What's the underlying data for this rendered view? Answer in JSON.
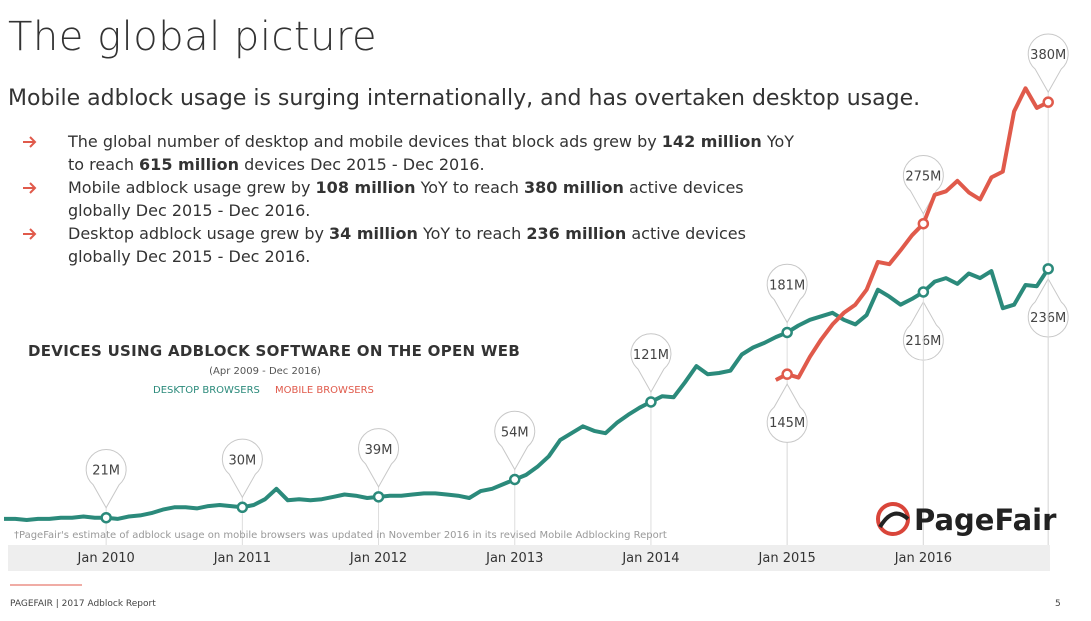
{
  "slide": {
    "title": "The global picture",
    "subtitle": "Mobile adblock usage is surging internationally, and has overtaken desktop usage.",
    "bullets": [
      [
        "The global number of desktop and mobile devices that block ads grew by ",
        "142 million",
        " YoY to reach ",
        "615 million",
        " devices Dec 2015 - Dec 2016."
      ],
      [
        "Mobile adblock usage grew by ",
        "108 million",
        " YoY to reach ",
        "380 million",
        " active devices globally Dec 2015 - Dec 2016."
      ],
      [
        "Desktop adblock usage grew by ",
        "34 million",
        " YoY to reach ",
        "236 million",
        " active devices globally Dec 2015 - Dec 2016."
      ]
    ],
    "footer": "PAGEFAIR | 2017 Adblock Report",
    "page_number": "5",
    "logo": "PageFair"
  },
  "chart_data": {
    "type": "line",
    "title": "DEVICES USING ADBLOCK SOFTWARE ON THE OPEN WEB",
    "subtitle": "(Apr 2009 - Dec 2016)",
    "footnote": "†PageFair's estimate of adblock usage on mobile browsers was updated in November 2016 in its revised Mobile Adblocking Report",
    "categories": [
      null,
      null,
      null,
      null,
      null,
      null,
      null,
      null,
      null,
      "Jan 2010",
      null,
      null,
      null,
      null,
      null,
      null,
      null,
      null,
      null,
      null,
      null,
      "Jan 2011",
      null,
      null,
      null,
      null,
      null,
      null,
      null,
      null,
      null,
      null,
      null,
      "Jan 2012",
      null,
      null,
      null,
      null,
      null,
      null,
      null,
      null,
      null,
      null,
      null,
      "Jan 2013",
      null,
      null,
      null,
      null,
      null,
      null,
      null,
      null,
      null,
      null,
      null,
      "Jan 2014",
      null,
      null,
      null,
      null,
      null,
      null,
      null,
      null,
      null,
      null,
      null,
      "Jan 2015",
      null,
      null,
      null,
      null,
      null,
      null,
      null,
      null,
      null,
      null,
      null,
      "Jan 2016",
      null,
      null,
      null,
      null,
      null,
      null,
      null,
      null,
      null,
      null,
      null
    ],
    "ylim": [
      0,
      400
    ],
    "series": [
      {
        "name": "DESKTOP BROWSERS",
        "color": "#2b8a7b",
        "values": [
          20,
          20,
          19,
          20,
          20,
          21,
          21,
          22,
          21,
          21,
          20,
          22,
          23,
          25,
          28,
          30,
          30,
          29,
          31,
          32,
          31,
          30,
          32,
          37,
          46,
          36,
          37,
          36,
          37,
          39,
          41,
          40,
          38,
          39,
          40,
          40,
          41,
          42,
          42,
          41,
          40,
          38,
          44,
          46,
          50,
          54,
          58,
          65,
          74,
          88,
          94,
          100,
          96,
          94,
          103,
          110,
          116,
          121,
          126,
          125,
          138,
          152,
          145,
          146,
          148,
          162,
          168,
          172,
          177,
          181,
          187,
          192,
          195,
          198,
          192,
          188,
          196,
          218,
          212,
          205,
          210,
          216,
          225,
          228,
          223,
          232,
          228,
          234,
          202,
          205,
          222,
          221,
          236
        ],
        "value_labels": [
          null,
          null,
          null,
          null,
          null,
          null,
          null,
          null,
          null,
          "21M",
          null,
          null,
          null,
          null,
          null,
          null,
          null,
          null,
          null,
          null,
          null,
          "30M",
          null,
          null,
          null,
          null,
          null,
          null,
          null,
          null,
          null,
          null,
          null,
          "39M",
          null,
          null,
          null,
          null,
          null,
          null,
          null,
          null,
          null,
          null,
          null,
          "54M",
          null,
          null,
          null,
          null,
          null,
          null,
          null,
          null,
          null,
          null,
          null,
          "121M",
          null,
          null,
          null,
          null,
          null,
          null,
          null,
          null,
          null,
          null,
          null,
          "181M",
          null,
          null,
          null,
          null,
          null,
          null,
          null,
          null,
          null,
          null,
          null,
          "216M",
          null,
          null,
          null,
          null,
          null,
          null,
          null,
          null,
          null,
          null,
          "236M"
        ]
      },
      {
        "name": "MOBILE BROWSERS",
        "color": "#e05a4b",
        "values": [
          null,
          null,
          null,
          null,
          null,
          null,
          null,
          null,
          null,
          null,
          null,
          null,
          null,
          null,
          null,
          null,
          null,
          null,
          null,
          null,
          null,
          null,
          null,
          null,
          null,
          null,
          null,
          null,
          null,
          null,
          null,
          null,
          null,
          null,
          null,
          null,
          null,
          null,
          null,
          null,
          null,
          null,
          null,
          null,
          null,
          null,
          null,
          null,
          null,
          null,
          null,
          null,
          null,
          null,
          null,
          null,
          null,
          null,
          null,
          null,
          null,
          null,
          null,
          null,
          null,
          null,
          null,
          null,
          140,
          145,
          142,
          160,
          175,
          188,
          198,
          205,
          218,
          242,
          240,
          252,
          265,
          275,
          300,
          303,
          312,
          302,
          296,
          315,
          320,
          372,
          392,
          375,
          380
        ],
        "value_labels": [
          null,
          null,
          null,
          null,
          null,
          null,
          null,
          null,
          null,
          null,
          null,
          null,
          null,
          null,
          null,
          null,
          null,
          null,
          null,
          null,
          null,
          null,
          null,
          null,
          null,
          null,
          null,
          null,
          null,
          null,
          null,
          null,
          null,
          null,
          null,
          null,
          null,
          null,
          null,
          null,
          null,
          null,
          null,
          null,
          null,
          null,
          null,
          null,
          null,
          null,
          null,
          null,
          null,
          null,
          null,
          null,
          null,
          null,
          null,
          null,
          null,
          null,
          null,
          null,
          null,
          null,
          null,
          null,
          null,
          "145M",
          null,
          null,
          null,
          null,
          null,
          null,
          null,
          null,
          null,
          null,
          null,
          "275M",
          null,
          null,
          null,
          null,
          null,
          null,
          null,
          null,
          null,
          null,
          "380M"
        ]
      }
    ]
  }
}
